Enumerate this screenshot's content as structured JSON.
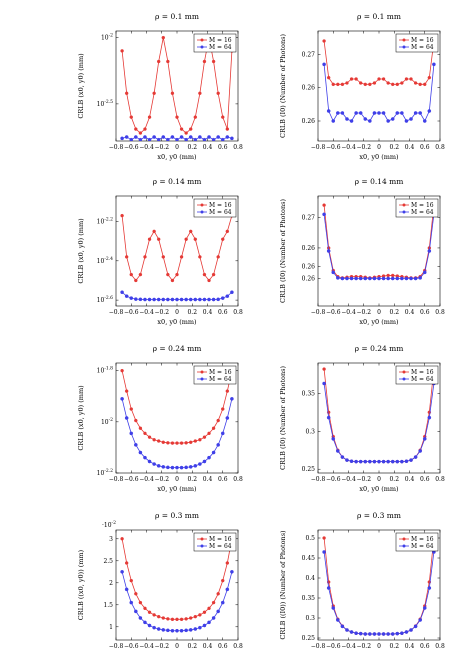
{
  "figure": {
    "legend": {
      "series": [
        "M = 16",
        "M = 64"
      ]
    },
    "colors": {
      "M16": "#e53935",
      "M64": "#3f3fe8"
    }
  },
  "chart_data": [
    {
      "id": "r0c0",
      "type": "line",
      "title": "ρ = 0.1 mm",
      "xlabel": "x0, y0 (mm)",
      "ylabel": "CRLB (x0, y0) (mm)",
      "xlim": [
        -0.8,
        0.8
      ],
      "ylim": [
        -2.78,
        -1.95
      ],
      "yscale": "log10",
      "xticks": [
        "−0.8",
        "−0.6",
        "−0.4",
        "−0.2",
        "0",
        "0.2",
        "0.4",
        "0.6",
        "0.8"
      ],
      "yticks": [
        {
          "v": -2.0,
          "label": "10^-2"
        },
        {
          "v": -2.5,
          "label": "10^-2.5"
        }
      ],
      "legend_pos": "top-right",
      "x": [
        -0.72,
        -0.66,
        -0.6,
        -0.54,
        -0.48,
        -0.42,
        -0.36,
        -0.3,
        -0.24,
        -0.18,
        -0.12,
        -0.06,
        0,
        0.06,
        0.12,
        0.18,
        0.24,
        0.3,
        0.36,
        0.42,
        0.48,
        0.54,
        0.6,
        0.66,
        0.72
      ],
      "series": [
        {
          "name": "M = 16",
          "values": [
            -2.1,
            -2.42,
            -2.6,
            -2.69,
            -2.72,
            -2.69,
            -2.6,
            -2.42,
            -2.18,
            -2.0,
            -2.18,
            -2.42,
            -2.6,
            -2.69,
            -2.72,
            -2.69,
            -2.6,
            -2.42,
            -2.18,
            -2.0,
            -2.18,
            -2.42,
            -2.6,
            -2.69,
            -2.1
          ]
        },
        {
          "name": "M = 64",
          "values": [
            -2.76,
            -2.75,
            -2.77,
            -2.75,
            -2.77,
            -2.75,
            -2.77,
            -2.75,
            -2.77,
            -2.75,
            -2.77,
            -2.75,
            -2.77,
            -2.75,
            -2.77,
            -2.75,
            -2.77,
            -2.75,
            -2.77,
            -2.75,
            -2.77,
            -2.75,
            -2.77,
            -2.75,
            -2.76
          ]
        }
      ]
    },
    {
      "id": "r0c1",
      "type": "line",
      "title": "ρ = 0.1 mm",
      "xlabel": "x0, y0 (mm)",
      "ylabel": "CRLB (I0) (Number of Photons)",
      "xlim": [
        -0.8,
        0.8
      ],
      "ylim": [
        0.257,
        0.2735
      ],
      "xticks": [
        "−0.8",
        "−0.6",
        "−0.4",
        "−0.2",
        "0",
        "0.2",
        "0.4",
        "0.6",
        "0.8"
      ],
      "yticks": [
        {
          "v": 0.26,
          "label": "0.26"
        },
        {
          "v": 0.265,
          "label": "0.26"
        },
        {
          "v": 0.27,
          "label": "0.27"
        }
      ],
      "legend_pos": "top-right",
      "x": [
        -0.72,
        -0.66,
        -0.6,
        -0.54,
        -0.48,
        -0.42,
        -0.36,
        -0.3,
        -0.24,
        -0.18,
        -0.12,
        -0.06,
        0,
        0.06,
        0.12,
        0.18,
        0.24,
        0.3,
        0.36,
        0.42,
        0.48,
        0.54,
        0.6,
        0.66,
        0.72
      ],
      "series": [
        {
          "name": "M = 16",
          "values": [
            0.272,
            0.2665,
            0.2655,
            0.2655,
            0.2655,
            0.2657,
            0.2663,
            0.2663,
            0.2657,
            0.2655,
            0.2655,
            0.2657,
            0.2663,
            0.2663,
            0.2657,
            0.2655,
            0.2655,
            0.2657,
            0.2663,
            0.2663,
            0.2657,
            0.2655,
            0.2655,
            0.2665,
            0.272
          ]
        },
        {
          "name": "M = 64",
          "values": [
            0.2685,
            0.2615,
            0.26,
            0.2612,
            0.2612,
            0.2603,
            0.26,
            0.2612,
            0.2612,
            0.2603,
            0.26,
            0.2612,
            0.2612,
            0.2612,
            0.26,
            0.2603,
            0.2612,
            0.2612,
            0.26,
            0.2603,
            0.2612,
            0.2612,
            0.26,
            0.2615,
            0.2685
          ]
        }
      ]
    },
    {
      "id": "r1c0",
      "type": "line",
      "title": "ρ = 0.14 mm",
      "xlabel": "x0, y0 (mm)",
      "ylabel": "CRLB (x0, y0) (mm)",
      "xlim": [
        -0.8,
        0.8
      ],
      "ylim": [
        -2.63,
        -2.07
      ],
      "yscale": "log10",
      "xticks": [
        "−0.8",
        "−0.6",
        "−0.4",
        "−0.2",
        "0",
        "0.2",
        "0.4",
        "0.6",
        "0.8"
      ],
      "yticks": [
        {
          "v": -2.2,
          "label": "10^-2.2"
        },
        {
          "v": -2.4,
          "label": "10^-2.4"
        },
        {
          "v": -2.6,
          "label": "10^-2.6"
        }
      ],
      "legend_pos": "top-right",
      "x": [
        -0.72,
        -0.66,
        -0.6,
        -0.54,
        -0.48,
        -0.42,
        -0.36,
        -0.3,
        -0.24,
        -0.18,
        -0.12,
        -0.06,
        0,
        0.06,
        0.12,
        0.18,
        0.24,
        0.3,
        0.36,
        0.42,
        0.48,
        0.54,
        0.6,
        0.66,
        0.72
      ],
      "series": [
        {
          "name": "M = 16",
          "values": [
            -2.17,
            -2.38,
            -2.47,
            -2.5,
            -2.47,
            -2.38,
            -2.29,
            -2.25,
            -2.29,
            -2.38,
            -2.47,
            -2.5,
            -2.47,
            -2.38,
            -2.29,
            -2.25,
            -2.29,
            -2.38,
            -2.47,
            -2.5,
            -2.47,
            -2.38,
            -2.29,
            -2.25,
            -2.17
          ]
        },
        {
          "name": "M = 64",
          "values": [
            -2.56,
            -2.58,
            -2.59,
            -2.595,
            -2.596,
            -2.597,
            -2.597,
            -2.597,
            -2.597,
            -2.597,
            -2.597,
            -2.597,
            -2.597,
            -2.597,
            -2.597,
            -2.597,
            -2.597,
            -2.597,
            -2.597,
            -2.597,
            -2.597,
            -2.596,
            -2.59,
            -2.58,
            -2.56
          ]
        }
      ]
    },
    {
      "id": "r1c1",
      "type": "line",
      "title": "ρ = 0.14 mm",
      "xlabel": "x0, y0 (mm)",
      "ylabel": "CRLB (I0) (Number of Photons)",
      "xlim": [
        -0.8,
        0.8
      ],
      "ylim": [
        0.2555,
        0.2735
      ],
      "xticks": [
        "−0.8",
        "−0.6",
        "−0.4",
        "−0.2",
        "0",
        "0.2",
        "0.4",
        "0.6",
        "0.8"
      ],
      "yticks": [
        {
          "v": 0.26,
          "label": "0.26"
        },
        {
          "v": 0.262,
          "label": "0.26"
        },
        {
          "v": 0.265,
          "label": "0.26"
        },
        {
          "v": 0.27,
          "label": "0.27"
        }
      ],
      "legend_pos": "top-right",
      "x": [
        -0.72,
        -0.66,
        -0.6,
        -0.54,
        -0.48,
        -0.42,
        -0.36,
        -0.3,
        -0.24,
        -0.18,
        -0.12,
        -0.06,
        0,
        0.06,
        0.12,
        0.18,
        0.24,
        0.3,
        0.36,
        0.42,
        0.48,
        0.54,
        0.6,
        0.66,
        0.72
      ],
      "series": [
        {
          "name": "M = 16",
          "values": [
            0.272,
            0.265,
            0.2613,
            0.2603,
            0.2601,
            0.2602,
            0.2603,
            0.2603,
            0.2603,
            0.2602,
            0.2601,
            0.2602,
            0.2603,
            0.2604,
            0.2605,
            0.2605,
            0.2604,
            0.2603,
            0.2602,
            0.2601,
            0.2601,
            0.2603,
            0.2613,
            0.265,
            0.272
          ]
        },
        {
          "name": "M = 64",
          "values": [
            0.2705,
            0.2645,
            0.261,
            0.2601,
            0.26,
            0.26,
            0.26,
            0.26,
            0.26,
            0.26,
            0.26,
            0.26,
            0.26,
            0.26,
            0.26,
            0.26,
            0.26,
            0.26,
            0.26,
            0.26,
            0.26,
            0.2601,
            0.261,
            0.2645,
            0.2705
          ]
        }
      ]
    },
    {
      "id": "r2c0",
      "type": "line",
      "title": "ρ = 0.24 mm",
      "xlabel": "x0, y0 (mm)",
      "ylabel": "CRLB (x0, y0) (mm)",
      "xlim": [
        -0.8,
        0.8
      ],
      "ylim": [
        -2.2,
        -1.77
      ],
      "yscale": "log10",
      "xticks": [
        "−0.8",
        "−0.6",
        "−0.4",
        "−0.2",
        "0",
        "0.2",
        "0.4",
        "0.6",
        "0.8"
      ],
      "yticks": [
        {
          "v": -1.8,
          "label": "10^-1.8"
        },
        {
          "v": -2.0,
          "label": "10^-2"
        },
        {
          "v": -2.2,
          "label": "10^-2.2"
        }
      ],
      "legend_pos": "top-right",
      "x": [
        -0.72,
        -0.66,
        -0.6,
        -0.54,
        -0.48,
        -0.42,
        -0.36,
        -0.3,
        -0.24,
        -0.18,
        -0.12,
        -0.06,
        0,
        0.06,
        0.12,
        0.18,
        0.24,
        0.3,
        0.36,
        0.42,
        0.48,
        0.54,
        0.6,
        0.66,
        0.72
      ],
      "series": [
        {
          "name": "M = 16",
          "values": [
            -1.8,
            -1.88,
            -1.95,
            -1.995,
            -2.025,
            -2.045,
            -2.06,
            -2.07,
            -2.075,
            -2.08,
            -2.082,
            -2.083,
            -2.083,
            -2.083,
            -2.082,
            -2.08,
            -2.075,
            -2.07,
            -2.06,
            -2.045,
            -2.025,
            -1.995,
            -1.95,
            -1.88,
            -1.8
          ]
        },
        {
          "name": "M = 64",
          "values": [
            -1.91,
            -1.985,
            -2.045,
            -2.09,
            -2.12,
            -2.14,
            -2.155,
            -2.165,
            -2.172,
            -2.176,
            -2.178,
            -2.179,
            -2.179,
            -2.179,
            -2.178,
            -2.176,
            -2.172,
            -2.165,
            -2.155,
            -2.14,
            -2.12,
            -2.09,
            -2.045,
            -1.985,
            -1.91
          ]
        }
      ]
    },
    {
      "id": "r2c1",
      "type": "line",
      "title": "ρ = 0.24 mm",
      "xlabel": "x0, y0 (mm)",
      "ylabel": "CRLB (I0) (Number of Photons)",
      "xlim": [
        -0.8,
        0.8
      ],
      "ylim": [
        0.245,
        0.39
      ],
      "xticks": [
        "−0.8",
        "−0.6",
        "−0.4",
        "−0.2",
        "0",
        "0.2",
        "0.4",
        "0.6",
        "0.8"
      ],
      "yticks": [
        {
          "v": 0.25,
          "label": "0.25"
        },
        {
          "v": 0.3,
          "label": "0.3"
        },
        {
          "v": 0.35,
          "label": "0.35"
        }
      ],
      "legend_pos": "top-right",
      "x": [
        -0.72,
        -0.66,
        -0.6,
        -0.54,
        -0.48,
        -0.42,
        -0.36,
        -0.3,
        -0.24,
        -0.18,
        -0.12,
        -0.06,
        0,
        0.06,
        0.12,
        0.18,
        0.24,
        0.3,
        0.36,
        0.42,
        0.48,
        0.54,
        0.6,
        0.66,
        0.72
      ],
      "series": [
        {
          "name": "M = 16",
          "values": [
            0.382,
            0.325,
            0.293,
            0.275,
            0.266,
            0.262,
            0.2605,
            0.26,
            0.26,
            0.26,
            0.26,
            0.26,
            0.26,
            0.26,
            0.26,
            0.26,
            0.26,
            0.26,
            0.2605,
            0.262,
            0.266,
            0.275,
            0.293,
            0.325,
            0.382
          ]
        },
        {
          "name": "M = 64",
          "values": [
            0.363,
            0.318,
            0.29,
            0.274,
            0.266,
            0.262,
            0.2605,
            0.26,
            0.26,
            0.26,
            0.26,
            0.26,
            0.26,
            0.26,
            0.26,
            0.26,
            0.26,
            0.26,
            0.2605,
            0.262,
            0.266,
            0.274,
            0.29,
            0.318,
            0.363
          ]
        }
      ]
    },
    {
      "id": "r3c0",
      "type": "line",
      "title": "ρ = 0.3 mm",
      "xlabel": "",
      "ylabel": "CRLB ((x0, y0)) (mm)",
      "xlim": [
        -0.8,
        0.8
      ],
      "ylim": [
        0.7,
        3.2
      ],
      "ymultiplier": "·10^-2",
      "xticks": [
        "−0.8",
        "−0.6",
        "−0.4",
        "−0.2",
        "0",
        "0.2",
        "0.4",
        "0.6",
        "0.8"
      ],
      "yticks": [
        {
          "v": 1,
          "label": "1"
        },
        {
          "v": 1.5,
          "label": "1.5"
        },
        {
          "v": 2,
          "label": "2"
        },
        {
          "v": 2.5,
          "label": "2.5"
        },
        {
          "v": 3,
          "label": "3"
        }
      ],
      "legend_pos": "top-right",
      "x": [
        -0.72,
        -0.66,
        -0.6,
        -0.54,
        -0.48,
        -0.42,
        -0.36,
        -0.3,
        -0.24,
        -0.18,
        -0.12,
        -0.06,
        0,
        0.06,
        0.12,
        0.18,
        0.24,
        0.3,
        0.36,
        0.42,
        0.48,
        0.54,
        0.6,
        0.66,
        0.72
      ],
      "series": [
        {
          "name": "M = 16",
          "values": [
            3.0,
            2.45,
            2.05,
            1.75,
            1.55,
            1.42,
            1.33,
            1.27,
            1.23,
            1.2,
            1.18,
            1.17,
            1.17,
            1.17,
            1.18,
            1.2,
            1.23,
            1.27,
            1.33,
            1.42,
            1.55,
            1.75,
            2.05,
            2.45,
            3.0
          ]
        },
        {
          "name": "M = 64",
          "values": [
            2.25,
            1.85,
            1.55,
            1.35,
            1.2,
            1.1,
            1.03,
            0.98,
            0.95,
            0.93,
            0.92,
            0.91,
            0.91,
            0.91,
            0.92,
            0.93,
            0.95,
            0.98,
            1.03,
            1.1,
            1.2,
            1.35,
            1.55,
            1.85,
            2.25
          ]
        }
      ]
    },
    {
      "id": "r3c1",
      "type": "line",
      "title": "ρ = 0.3 mm",
      "xlabel": "",
      "ylabel": "CRLB ((I0)) (Number of Photons)",
      "xlim": [
        -0.8,
        0.8
      ],
      "ylim": [
        0.245,
        0.52
      ],
      "xticks": [
        "−0.8",
        "−0.6",
        "−0.4",
        "−0.2",
        "0",
        "0.2",
        "0.4",
        "0.6",
        "0.8"
      ],
      "yticks": [
        {
          "v": 0.25,
          "label": "0.25"
        },
        {
          "v": 0.3,
          "label": "0.3"
        },
        {
          "v": 0.35,
          "label": "0.35"
        },
        {
          "v": 0.4,
          "label": "0.4"
        },
        {
          "v": 0.45,
          "label": "0.45"
        },
        {
          "v": 0.5,
          "label": "0.5"
        }
      ],
      "legend_pos": "top-right",
      "x": [
        -0.72,
        -0.66,
        -0.6,
        -0.54,
        -0.48,
        -0.42,
        -0.36,
        -0.3,
        -0.24,
        -0.18,
        -0.12,
        -0.06,
        0,
        0.06,
        0.12,
        0.18,
        0.24,
        0.3,
        0.36,
        0.42,
        0.48,
        0.54,
        0.6,
        0.66,
        0.72
      ],
      "series": [
        {
          "name": "M = 16",
          "values": [
            0.5,
            0.39,
            0.33,
            0.297,
            0.28,
            0.27,
            0.265,
            0.262,
            0.261,
            0.26,
            0.26,
            0.26,
            0.26,
            0.26,
            0.26,
            0.26,
            0.261,
            0.262,
            0.265,
            0.27,
            0.28,
            0.297,
            0.33,
            0.39,
            0.5
          ]
        },
        {
          "name": "M = 64",
          "values": [
            0.465,
            0.375,
            0.325,
            0.295,
            0.279,
            0.27,
            0.265,
            0.262,
            0.261,
            0.26,
            0.26,
            0.26,
            0.26,
            0.26,
            0.26,
            0.26,
            0.261,
            0.262,
            0.265,
            0.27,
            0.279,
            0.295,
            0.325,
            0.375,
            0.465
          ]
        }
      ]
    }
  ]
}
